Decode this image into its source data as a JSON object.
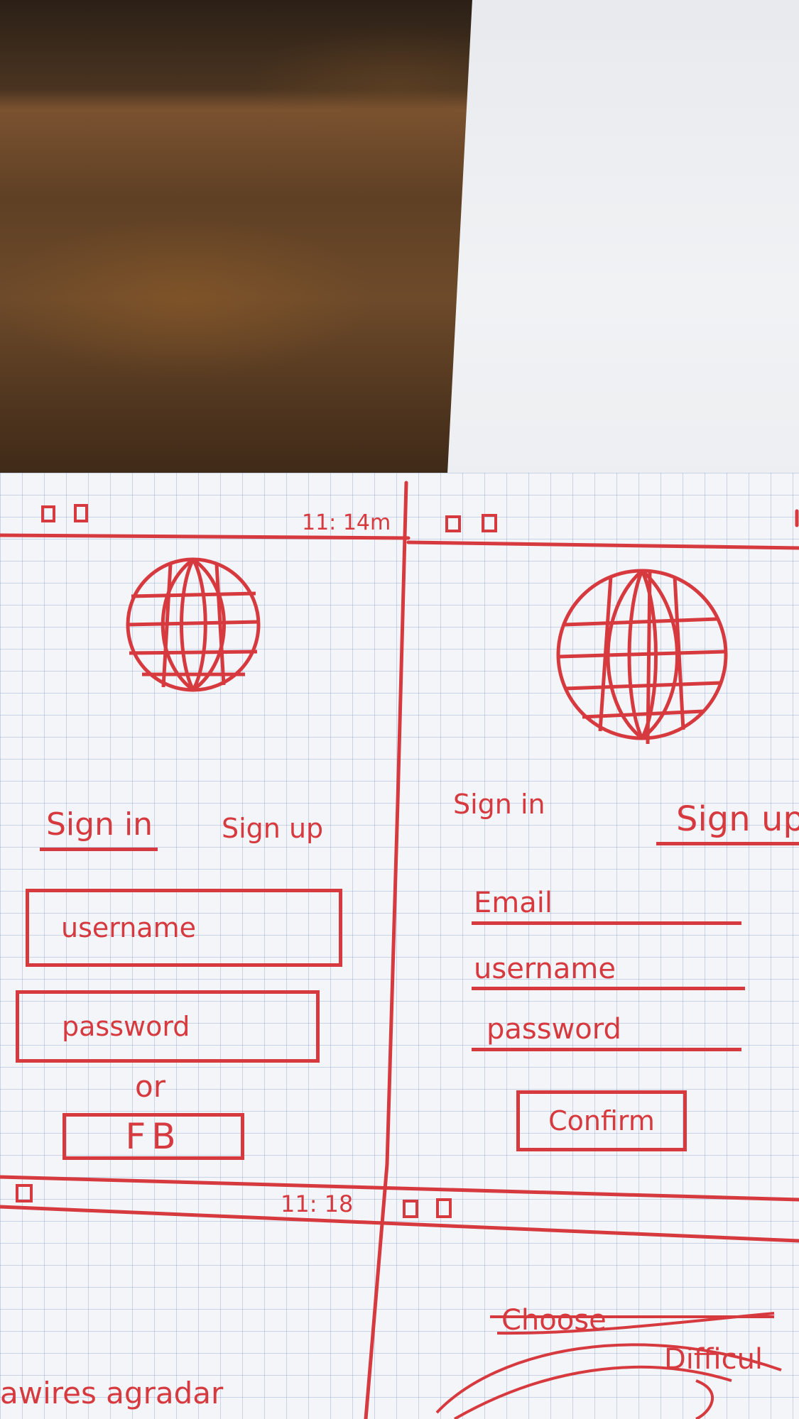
{
  "screens": {
    "signin": {
      "time": "11: 14m",
      "tab_signin": "Sign in",
      "tab_signup": "Sign up",
      "username_placeholder": "username",
      "password_placeholder": "password",
      "or_label": "or",
      "fb_label": "FB"
    },
    "signup": {
      "tab_signin": "Sign in",
      "tab_signup": "Sign up",
      "email_label": "Email",
      "username_label": "username",
      "password_label": "password",
      "confirm_label": "Confirm"
    },
    "bottom_left": {
      "time": "11: 18",
      "text": "awires agradar"
    },
    "bottom_right": {
      "heading": "Choose",
      "heading2": "Difficul"
    }
  },
  "colors": {
    "ink": "#d63a3f",
    "grid": "#7896c8",
    "paper": "#f3f5f8"
  },
  "icons": {
    "logo": "globe-icon",
    "status": "status-square-icon"
  }
}
